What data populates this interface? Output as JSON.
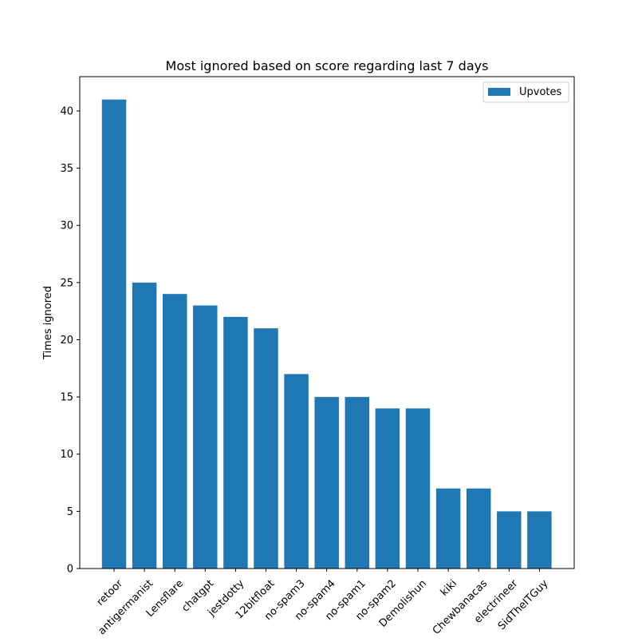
{
  "chart_data": {
    "type": "bar",
    "title": "Most ignored based on score regarding last 7 days",
    "xlabel": "",
    "ylabel": "Times ignored",
    "categories": [
      "retoor",
      "antigermanist",
      "Lensflare",
      "chatgpt",
      "jestdotty",
      "12bitfloat",
      "no-spam3",
      "no-spam4",
      "no-spam1",
      "no-spam2",
      "Demolishun",
      "kiki",
      "Chewbanacas",
      "electrineer",
      "SidTheITGuy"
    ],
    "series": [
      {
        "name": "Upvotes",
        "values": [
          41,
          25,
          24,
          23,
          22,
          21,
          17,
          15,
          15,
          14,
          14,
          7,
          7,
          5,
          5
        ]
      }
    ],
    "ylim": [
      0,
      43
    ],
    "yticks": [
      0,
      5,
      10,
      15,
      20,
      25,
      30,
      35,
      40
    ],
    "grid": false,
    "legend_position": "top-right",
    "bar_color": "#1f77b4"
  }
}
